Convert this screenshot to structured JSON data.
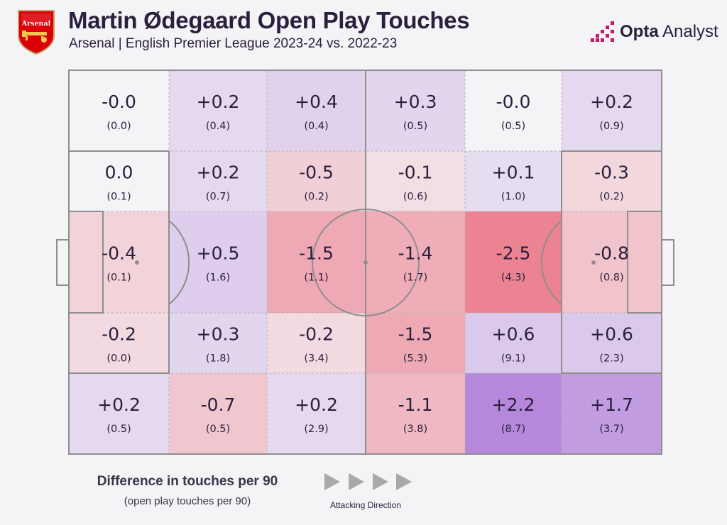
{
  "header": {
    "title": "Martin Ødegaard Open Play Touches",
    "subtitle": "Arsenal | English Premier League 2023-24 vs. 2022-23",
    "crest_text": "Arsenal",
    "crest_color": "#db0007",
    "brand_bold": "Opta",
    "brand_light": " Analyst",
    "brand_color": "#c4196b"
  },
  "legend": {
    "title": "Difference in touches per 90",
    "subtitle": "(open play touches per 90)",
    "direction_label": "Attacking Direction"
  },
  "colors": {
    "increase": "#8b3fc9",
    "decrease": "#e84a5f",
    "neutral": "#f4f3f6",
    "lines": "#8e8e8e"
  },
  "chart_data": {
    "type": "heatmap",
    "title": "Martin Ødegaard Open Play Touches",
    "subtitle": "Arsenal | English Premier League 2023-24 vs. 2022-23",
    "value_label": "Difference in touches per 90",
    "secondary_label": "(open play touches per 90)",
    "attacking_direction": "left-to-right",
    "columns": 6,
    "rows": 5,
    "cells": [
      [
        {
          "diff": "-0.0",
          "touches": "(0.0)",
          "v": -0.0
        },
        {
          "diff": "+0.2",
          "touches": "(0.4)",
          "v": 0.2
        },
        {
          "diff": "+0.4",
          "touches": "(0.4)",
          "v": 0.4
        },
        {
          "diff": "+0.3",
          "touches": "(0.5)",
          "v": 0.3
        },
        {
          "diff": "-0.0",
          "touches": "(0.5)",
          "v": -0.0
        },
        {
          "diff": "+0.2",
          "touches": "(0.9)",
          "v": 0.2
        }
      ],
      [
        {
          "diff": "0.0",
          "touches": "(0.1)",
          "v": 0.0
        },
        {
          "diff": "+0.2",
          "touches": "(0.7)",
          "v": 0.2
        },
        {
          "diff": "-0.5",
          "touches": "(0.2)",
          "v": -0.5
        },
        {
          "diff": "-0.1",
          "touches": "(0.6)",
          "v": -0.1
        },
        {
          "diff": "+0.1",
          "touches": "(1.0)",
          "v": 0.1
        },
        {
          "diff": "-0.3",
          "touches": "(0.2)",
          "v": -0.3
        }
      ],
      [
        {
          "diff": "-0.4",
          "touches": "(0.1)",
          "v": -0.4
        },
        {
          "diff": "+0.5",
          "touches": "(1.6)",
          "v": 0.5
        },
        {
          "diff": "-1.5",
          "touches": "(1.1)",
          "v": -1.5
        },
        {
          "diff": "-1.4",
          "touches": "(1.7)",
          "v": -1.4
        },
        {
          "diff": "-2.5",
          "touches": "(4.3)",
          "v": -2.5
        },
        {
          "diff": "-0.8",
          "touches": "(0.8)",
          "v": -0.8
        }
      ],
      [
        {
          "diff": "-0.2",
          "touches": "(0.0)",
          "v": -0.2
        },
        {
          "diff": "+0.3",
          "touches": "(1.8)",
          "v": 0.3
        },
        {
          "diff": "-0.2",
          "touches": "(3.4)",
          "v": -0.2
        },
        {
          "diff": "-1.5",
          "touches": "(5.3)",
          "v": -1.5
        },
        {
          "diff": "+0.6",
          "touches": "(9.1)",
          "v": 0.6
        },
        {
          "diff": "+0.6",
          "touches": "(2.3)",
          "v": 0.6
        }
      ],
      [
        {
          "diff": "+0.2",
          "touches": "(0.5)",
          "v": 0.2
        },
        {
          "diff": "-0.7",
          "touches": "(0.5)",
          "v": -0.7
        },
        {
          "diff": "+0.2",
          "touches": "(2.9)",
          "v": 0.2
        },
        {
          "diff": "-1.1",
          "touches": "(3.8)",
          "v": -1.1
        },
        {
          "diff": "+2.2",
          "touches": "(8.7)",
          "v": 2.2
        },
        {
          "diff": "+1.7",
          "touches": "(3.7)",
          "v": 1.7
        }
      ]
    ]
  }
}
